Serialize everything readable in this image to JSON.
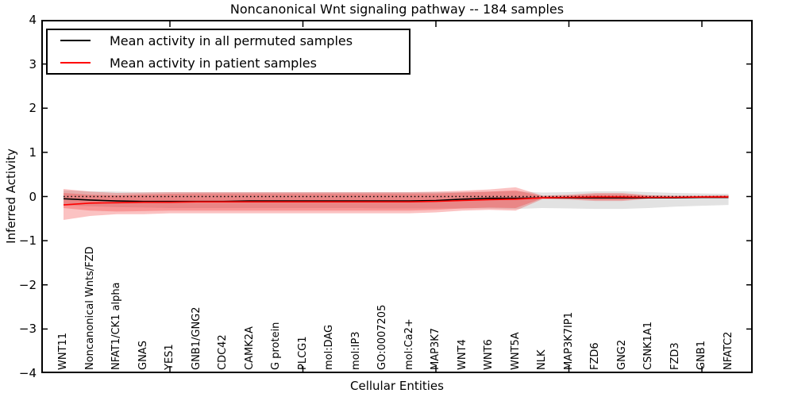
{
  "figure": {
    "title": "Noncanonical Wnt signaling pathway -- 184 samples",
    "xlabel": "Cellular Entities",
    "ylabel": "Inferred Activity"
  },
  "legend": {
    "entries": [
      {
        "label": "Mean activity in all permuted samples",
        "color": "#000000"
      },
      {
        "label": "Mean activity in patient samples",
        "color": "#ff0000"
      }
    ]
  },
  "axes": {
    "ytick_labels": [
      "4",
      "3",
      "2",
      "1",
      "0",
      "−1",
      "−2",
      "−3",
      "−4"
    ],
    "ytick_values": [
      4,
      3,
      2,
      1,
      0,
      -1,
      -2,
      -3,
      -4
    ],
    "xtick_entity_indices": [
      5,
      10,
      15,
      20,
      25
    ]
  },
  "chart_data": {
    "type": "line",
    "title": "Noncanonical Wnt signaling pathway -- 184 samples",
    "xlabel": "Cellular Entities",
    "ylabel": "Inferred Activity",
    "ylim": [
      -4,
      4
    ],
    "yticks": [
      4,
      3,
      2,
      1,
      0,
      -1,
      -2,
      -3,
      -4
    ],
    "grid": false,
    "legend_position": "upper left",
    "categories": [
      "WNT11",
      "Noncanonical Wnts/FZD",
      "NFAT1/CK1 alpha",
      "GNAS",
      "YES1",
      "GNB1/GNG2",
      "CDC42",
      "CAMK2A",
      "G protein",
      "PLCG1",
      "mol:DAG",
      "mol:IP3",
      "GO:0007205",
      "mol:Ca2+",
      "MAP3K7",
      "WNT4",
      "WNT6",
      "WNT5A",
      "NLK",
      "MAP3K7IP1",
      "FZD6",
      "GNG2",
      "CSNK1A1",
      "FZD3",
      "GNB1",
      "NFATC2"
    ],
    "zero_line": {
      "y": 0,
      "style": "dotted",
      "color": "#000000"
    },
    "series": [
      {
        "name": "Permuted samples band",
        "type": "band",
        "color": "#e2e2e2",
        "top": [
          0.14,
          0.12,
          0.11,
          0.1,
          0.1,
          0.1,
          0.1,
          0.1,
          0.1,
          0.1,
          0.1,
          0.1,
          0.1,
          0.1,
          0.1,
          0.1,
          0.11,
          0.12,
          0.09,
          0.1,
          0.12,
          0.12,
          0.1,
          0.08,
          0.07,
          0.06
        ],
        "bottom": [
          -0.2,
          -0.22,
          -0.24,
          -0.25,
          -0.26,
          -0.26,
          -0.26,
          -0.26,
          -0.26,
          -0.26,
          -0.26,
          -0.26,
          -0.27,
          -0.27,
          -0.27,
          -0.27,
          -0.27,
          -0.28,
          -0.26,
          -0.27,
          -0.28,
          -0.28,
          -0.26,
          -0.23,
          -0.21,
          -0.19
        ]
      },
      {
        "name": "Patient samples band (outer)",
        "type": "band",
        "color": "rgba(240,30,30,0.27)",
        "top": [
          0.17,
          0.11,
          0.08,
          0.09,
          0.1,
          0.1,
          0.1,
          0.1,
          0.1,
          0.1,
          0.1,
          0.1,
          0.1,
          0.1,
          0.11,
          0.13,
          0.16,
          0.21,
          0.02,
          0.04,
          0.08,
          0.08,
          0.03,
          0.02,
          0.02,
          0.03
        ],
        "bottom": [
          -0.53,
          -0.44,
          -0.4,
          -0.4,
          -0.38,
          -0.38,
          -0.38,
          -0.38,
          -0.38,
          -0.38,
          -0.38,
          -0.38,
          -0.38,
          -0.38,
          -0.36,
          -0.32,
          -0.3,
          -0.32,
          -0.06,
          -0.07,
          -0.1,
          -0.1,
          -0.05,
          -0.04,
          -0.04,
          -0.04
        ]
      },
      {
        "name": "Patient samples band (inner)",
        "type": "band",
        "color": "rgba(240,30,30,0.27)",
        "top": [
          0.08,
          0.04,
          0.03,
          0.05,
          0.06,
          0.07,
          0.07,
          0.07,
          0.07,
          0.07,
          0.07,
          0.07,
          0.07,
          0.07,
          0.07,
          0.09,
          0.11,
          0.14,
          0.01,
          0.02,
          0.05,
          0.05,
          0.02,
          0.01,
          0.01,
          0.02
        ],
        "bottom": [
          -0.26,
          -0.32,
          -0.34,
          -0.33,
          -0.32,
          -0.32,
          -0.32,
          -0.32,
          -0.32,
          -0.32,
          -0.32,
          -0.32,
          -0.32,
          -0.32,
          -0.3,
          -0.27,
          -0.25,
          -0.26,
          -0.04,
          -0.05,
          -0.08,
          -0.08,
          -0.04,
          -0.03,
          -0.03,
          -0.03
        ]
      },
      {
        "name": "Mean activity in all permuted samples",
        "type": "line",
        "color": "#000000",
        "values": [
          -0.05,
          -0.08,
          -0.1,
          -0.11,
          -0.11,
          -0.11,
          -0.11,
          -0.1,
          -0.1,
          -0.1,
          -0.1,
          -0.1,
          -0.1,
          -0.1,
          -0.09,
          -0.06,
          -0.04,
          -0.04,
          -0.03,
          -0.03,
          -0.03,
          -0.03,
          -0.03,
          -0.03,
          -0.02,
          -0.02
        ]
      },
      {
        "name": "Mean activity in patient samples",
        "type": "line",
        "color": "#ff0000",
        "values": [
          -0.19,
          -0.15,
          -0.14,
          -0.13,
          -0.13,
          -0.12,
          -0.12,
          -0.12,
          -0.12,
          -0.12,
          -0.12,
          -0.12,
          -0.12,
          -0.12,
          -0.11,
          -0.09,
          -0.07,
          -0.06,
          -0.03,
          -0.02,
          -0.01,
          -0.01,
          -0.02,
          -0.02,
          -0.01,
          -0.01
        ]
      }
    ]
  }
}
